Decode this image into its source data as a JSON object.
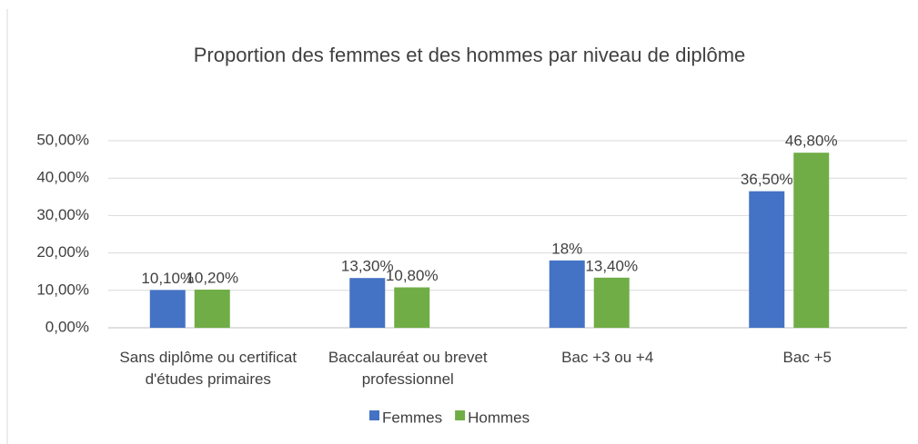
{
  "chart_data": {
    "type": "bar",
    "title": "Proportion des femmes et des hommes par niveau de diplôme",
    "categories": [
      "Sans diplôme ou certificat d'études primaires",
      "Baccalauréat ou brevet professionnel",
      "Bac +3 ou +4",
      "Bac +5"
    ],
    "series": [
      {
        "name": "Femmes",
        "color": "#4472c4",
        "values": [
          10.1,
          13.3,
          18,
          36.5
        ],
        "value_labels": [
          "10,10%",
          "13,30%",
          "18%",
          "36,50%"
        ]
      },
      {
        "name": "Hommes",
        "color": "#70ad47",
        "values": [
          10.2,
          10.8,
          13.4,
          46.8
        ],
        "value_labels": [
          "10,20%",
          "10,80%",
          "13,40%",
          "46,80%"
        ]
      }
    ],
    "ylim": [
      0,
      50
    ],
    "yticks": [
      {
        "value": 0,
        "label": "0,00%"
      },
      {
        "value": 10,
        "label": "10,00%"
      },
      {
        "value": 20,
        "label": "20,00%"
      },
      {
        "value": 30,
        "label": "30,00%"
      },
      {
        "value": 40,
        "label": "40,00%"
      },
      {
        "value": 50,
        "label": "50,00%"
      }
    ],
    "grid": true,
    "legend": "bottom"
  }
}
